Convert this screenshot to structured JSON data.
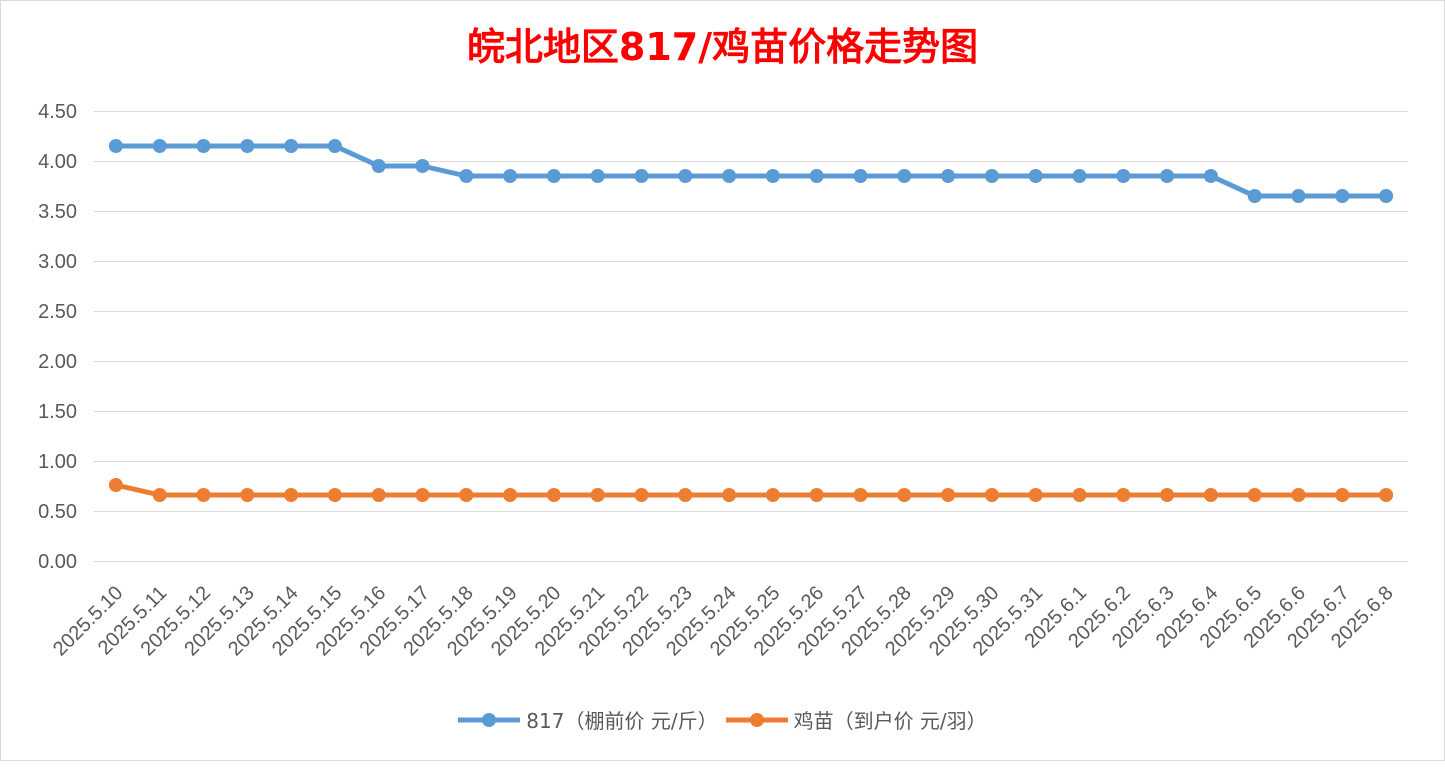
{
  "chart_data": {
    "type": "line",
    "title": "皖北地区817/鸡苗价格走势图",
    "categories": [
      "2025.5.10",
      "2025.5.11",
      "2025.5.12",
      "2025.5.13",
      "2025.5.14",
      "2025.5.15",
      "2025.5.16",
      "2025.5.17",
      "2025.5.18",
      "2025.5.19",
      "2025.5.20",
      "2025.5.21",
      "2025.5.22",
      "2025.5.23",
      "2025.5.24",
      "2025.5.25",
      "2025.5.26",
      "2025.5.27",
      "2025.5.28",
      "2025.5.29",
      "2025.5.30",
      "2025.5.31",
      "2025.6.1",
      "2025.6.2",
      "2025.6.3",
      "2025.6.4",
      "2025.6.5",
      "2025.6.6",
      "2025.6.7",
      "2025.6.8"
    ],
    "ylim": [
      0,
      4.5
    ],
    "yticks": [
      "0.00",
      "0.50",
      "1.00",
      "1.50",
      "2.00",
      "2.50",
      "3.00",
      "3.50",
      "4.00",
      "4.50"
    ],
    "grid": true,
    "legend_position": "bottom",
    "series": [
      {
        "name": "817（棚前价 元/斤）",
        "color": "#5B9BD5",
        "values": [
          4.15,
          4.15,
          4.15,
          4.15,
          4.15,
          4.15,
          3.95,
          3.95,
          3.85,
          3.85,
          3.85,
          3.85,
          3.85,
          3.85,
          3.85,
          3.85,
          3.85,
          3.85,
          3.85,
          3.85,
          3.85,
          3.85,
          3.85,
          3.85,
          3.85,
          3.85,
          3.65,
          3.65,
          3.65,
          3.65
        ]
      },
      {
        "name": "鸡苗（到户价 元/羽）",
        "color": "#ED7D31",
        "values": [
          0.76,
          0.66,
          0.66,
          0.66,
          0.66,
          0.66,
          0.66,
          0.66,
          0.66,
          0.66,
          0.66,
          0.66,
          0.66,
          0.66,
          0.66,
          0.66,
          0.66,
          0.66,
          0.66,
          0.66,
          0.66,
          0.66,
          0.66,
          0.66,
          0.66,
          0.66,
          0.66,
          0.66,
          0.66,
          0.66
        ]
      }
    ]
  }
}
